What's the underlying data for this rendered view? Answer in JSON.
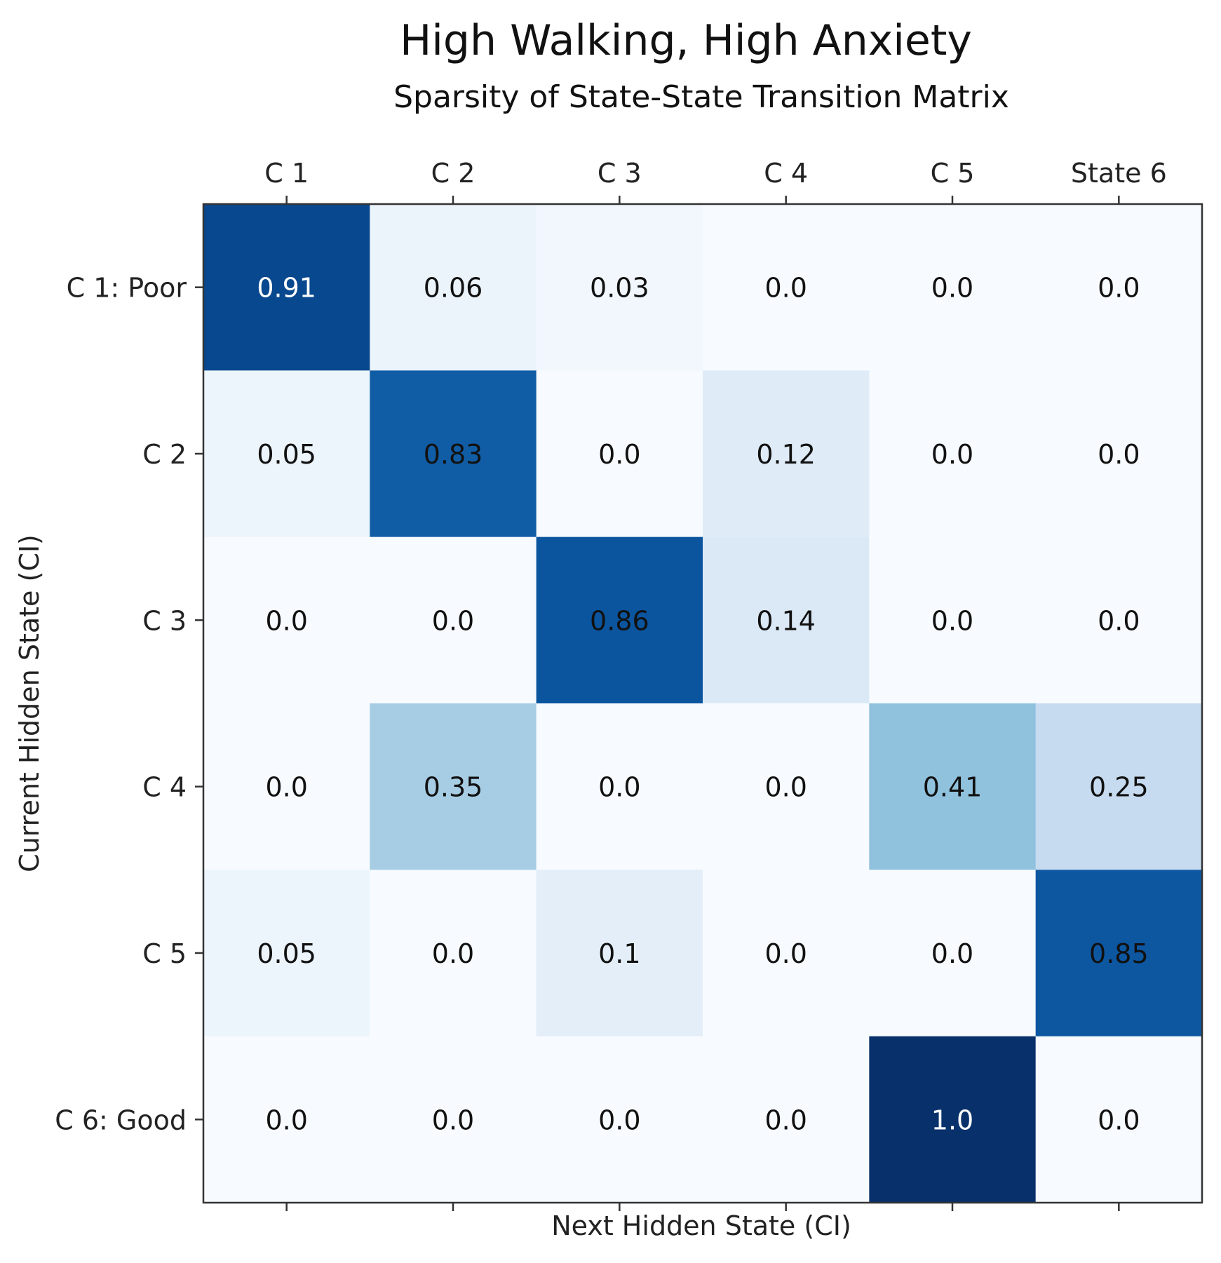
{
  "chart_data": {
    "type": "heatmap",
    "title": "High Walking, High Anxiety",
    "subtitle": "Sparsity of State-State Transition Matrix",
    "xlabel": "Next Hidden State (CI)",
    "ylabel": "Current Hidden State (CI)",
    "x_categories": [
      "C 1",
      "C 2",
      "C 3",
      "C 4",
      "C 5",
      "State 6"
    ],
    "y_categories": [
      "C 1: Poor",
      "C 2",
      "C 3",
      "C 4",
      "C 5",
      "C 6: Good"
    ],
    "values": [
      [
        0.91,
        0.06,
        0.03,
        0.0,
        0.0,
        0.0
      ],
      [
        0.05,
        0.83,
        0.0,
        0.12,
        0.0,
        0.0
      ],
      [
        0.0,
        0.0,
        0.86,
        0.14,
        0.0,
        0.0
      ],
      [
        0.0,
        0.35,
        0.0,
        0.0,
        0.41,
        0.25
      ],
      [
        0.05,
        0.0,
        0.1,
        0.0,
        0.0,
        0.85
      ],
      [
        0.0,
        0.0,
        0.0,
        0.0,
        1.0,
        0.0
      ]
    ],
    "cell_labels": [
      [
        "0.91",
        "0.06",
        "0.03",
        "0.0",
        "0.0",
        "0.0"
      ],
      [
        "0.05",
        "0.83",
        "0.0",
        "0.12",
        "0.0",
        "0.0"
      ],
      [
        "0.0",
        "0.0",
        "0.86",
        "0.14",
        "0.0",
        "0.0"
      ],
      [
        "0.0",
        "0.35",
        "0.0",
        "0.0",
        "0.41",
        "0.25"
      ],
      [
        "0.05",
        "0.0",
        "0.1",
        "0.0",
        "0.0",
        "0.85"
      ],
      [
        "0.0",
        "0.0",
        "0.0",
        "0.0",
        "1.0",
        "0.0"
      ]
    ],
    "colormap": "Blues",
    "x_tick_position": "top",
    "grid": false,
    "legend": "none"
  }
}
